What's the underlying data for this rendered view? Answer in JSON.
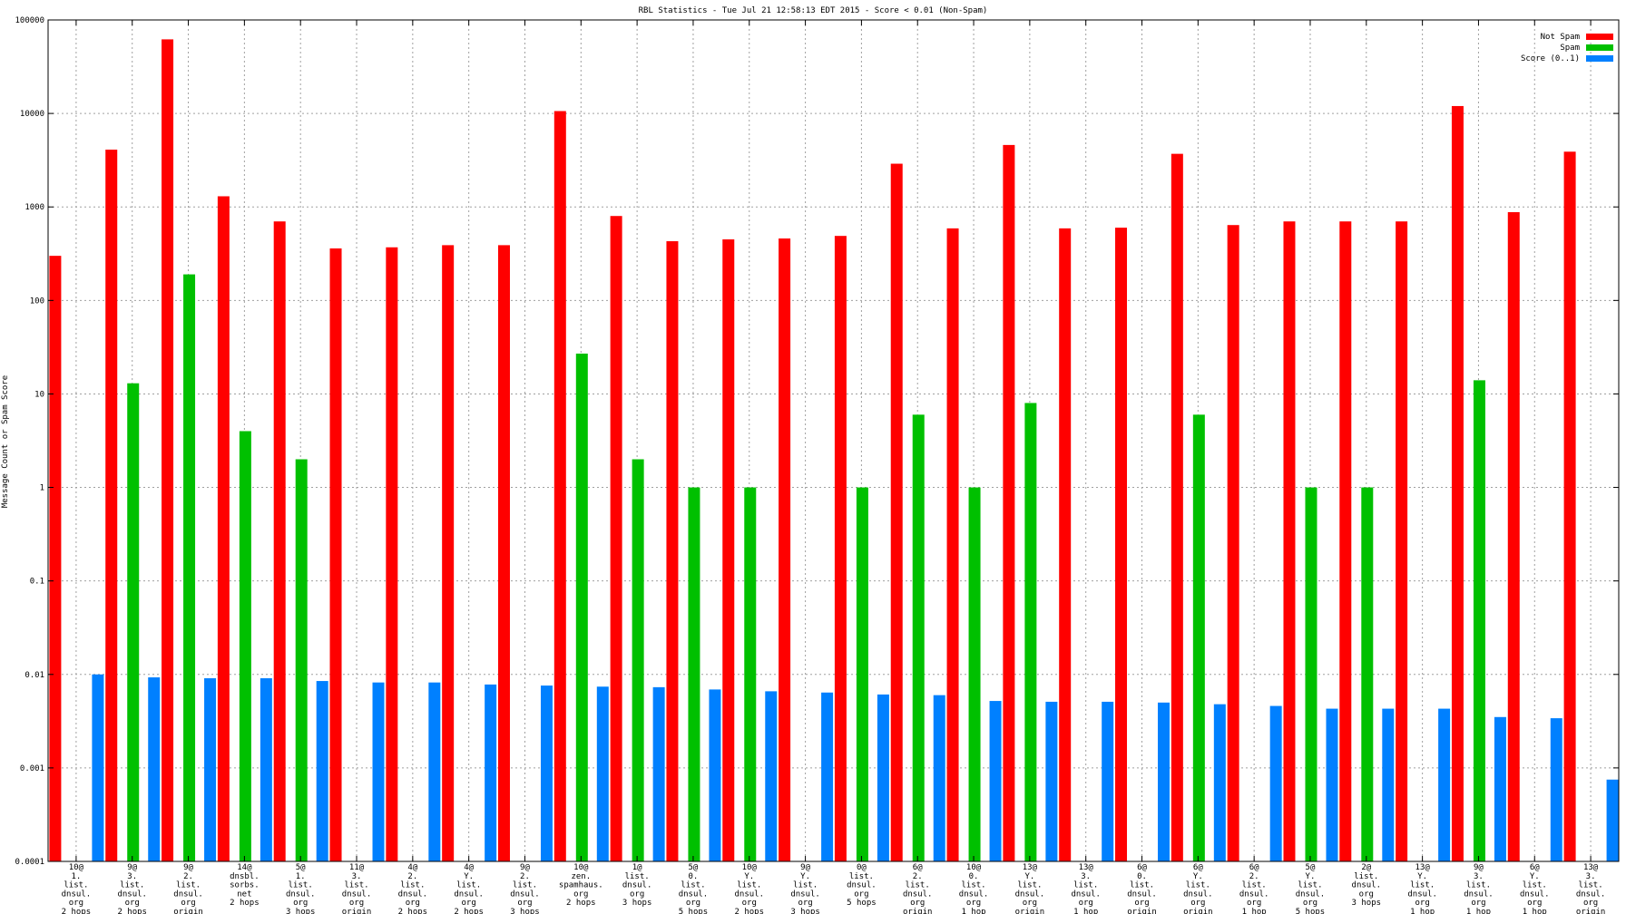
{
  "chart_data": {
    "type": "bar",
    "title": "RBL Statistics - Tue Jul 21 12:58:13 EDT 2015 - Score < 0.01 (Non-Spam)",
    "xlabel": "",
    "ylabel": "Message Count or Spam Score",
    "yscale": "log",
    "ylim": [
      0.0001,
      100000
    ],
    "y_ticks": [
      "0.0001",
      "0.001",
      "0.01",
      "0.1",
      "1",
      "10",
      "100",
      "1000",
      "10000",
      "100000"
    ],
    "grid": true,
    "legend_position": "top-right",
    "categories": [
      [
        "10@",
        "1.",
        "list.",
        "dnsul.",
        "org",
        "2 hops"
      ],
      [
        "9@",
        "3.",
        "list.",
        "dnsul.",
        "org",
        "2 hops"
      ],
      [
        "9@",
        "2.",
        "list.",
        "dnsul.",
        "org",
        "origin"
      ],
      [
        "14@",
        "dnsbl.",
        "sorbs.",
        "net",
        "2 hops"
      ],
      [
        "5@",
        "1.",
        "list.",
        "dnsul.",
        "org",
        "3 hops"
      ],
      [
        "11@",
        "3.",
        "list.",
        "dnsul.",
        "org",
        "origin"
      ],
      [
        "4@",
        "2.",
        "list.",
        "dnsul.",
        "org",
        "2 hops"
      ],
      [
        "4@",
        "Y.",
        "list.",
        "dnsul.",
        "org",
        "2 hops"
      ],
      [
        "9@",
        "2.",
        "list.",
        "dnsul.",
        "org",
        "3 hops"
      ],
      [
        "10@",
        "zen.",
        "spamhaus.",
        "org",
        "2 hops"
      ],
      [
        "1@",
        "list.",
        "dnsul.",
        "org",
        "3 hops"
      ],
      [
        "5@",
        "0.",
        "list.",
        "dnsul.",
        "org",
        "5 hops"
      ],
      [
        "10@",
        "Y.",
        "list.",
        "dnsul.",
        "org",
        "2 hops"
      ],
      [
        "9@",
        "Y.",
        "list.",
        "dnsul.",
        "org",
        "3 hops"
      ],
      [
        "0@",
        "list.",
        "dnsul.",
        "org",
        "5 hops"
      ],
      [
        "6@",
        "2.",
        "list.",
        "dnsul.",
        "org",
        "origin"
      ],
      [
        "10@",
        "0.",
        "list.",
        "dnsul.",
        "org",
        "1 hop"
      ],
      [
        "13@",
        "Y.",
        "list.",
        "dnsul.",
        "org",
        "origin"
      ],
      [
        "13@",
        "3.",
        "list.",
        "dnsul.",
        "org",
        "1 hop"
      ],
      [
        "6@",
        "0.",
        "list.",
        "dnsul.",
        "org",
        "origin"
      ],
      [
        "6@",
        "Y.",
        "list.",
        "dnsul.",
        "org",
        "origin"
      ],
      [
        "6@",
        "2.",
        "list.",
        "dnsul.",
        "org",
        "1 hop"
      ],
      [
        "5@",
        "Y.",
        "list.",
        "dnsul.",
        "org",
        "5 hops"
      ],
      [
        "2@",
        "list.",
        "dnsul.",
        "org",
        "3 hops"
      ],
      [
        "13@",
        "Y.",
        "list.",
        "dnsul.",
        "org",
        "1 hop"
      ],
      [
        "9@",
        "3.",
        "list.",
        "dnsul.",
        "org",
        "1 hop"
      ],
      [
        "6@",
        "Y.",
        "list.",
        "dnsul.",
        "org",
        "1 hop"
      ],
      [
        "13@",
        "3.",
        "list.",
        "dnsul.",
        "org",
        "origin"
      ]
    ],
    "series": [
      {
        "name": "Not Spam",
        "color": "#ff0000",
        "values": [
          300,
          4100,
          62000,
          1300,
          700,
          360,
          370,
          390,
          390,
          10600,
          800,
          430,
          450,
          460,
          490,
          2900,
          590,
          4600,
          590,
          600,
          3700,
          640,
          700,
          700,
          700,
          12000,
          880,
          3900
        ]
      },
      {
        "name": "Spam",
        "color": "#00c000",
        "values": [
          null,
          13,
          190,
          4,
          2,
          null,
          null,
          null,
          null,
          27,
          2,
          1,
          1,
          null,
          1,
          6,
          1,
          8,
          null,
          null,
          6,
          null,
          1,
          1,
          null,
          14,
          null,
          null
        ]
      },
      {
        "name": "Score (0..1)",
        "color": "#0080ff",
        "values": [
          0.01,
          0.0093,
          0.0091,
          0.0091,
          0.0085,
          0.0082,
          0.0082,
          0.0078,
          0.0076,
          0.0074,
          0.0073,
          0.0069,
          0.0066,
          0.0064,
          0.0061,
          0.006,
          0.0052,
          0.0051,
          0.0051,
          0.005,
          0.0048,
          0.0046,
          0.0043,
          0.0043,
          0.0043,
          0.0035,
          0.0034,
          0.00075
        ]
      }
    ]
  }
}
